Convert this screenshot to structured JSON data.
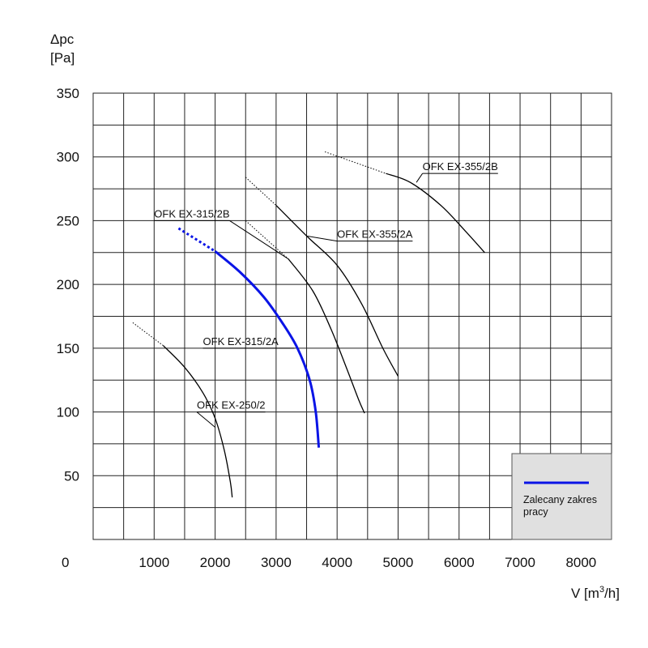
{
  "chart_data": {
    "type": "line",
    "ylabel_line1": "Δpc",
    "ylabel_line2": "[Pa]",
    "xlabel": "V [m³/h]",
    "xlabel_base": "V [m",
    "xlabel_sup": "3",
    "xlabel_tail": "/h]",
    "origin_label": "0",
    "xlim": [
      0,
      8500
    ],
    "ylim": [
      0,
      350
    ],
    "x_ticks": [
      1000,
      2000,
      3000,
      4000,
      5000,
      6000,
      7000,
      8000
    ],
    "y_ticks": [
      50,
      100,
      150,
      200,
      250,
      300,
      350
    ],
    "grid": true,
    "legend": {
      "placement": "bottom-right",
      "entry": "Zalecany zakres pracy",
      "entry_line1": "Zalecany zakres",
      "entry_line2": "pracy",
      "color": "#0a14e6"
    },
    "series": [
      {
        "name": "OFK EX-250/2",
        "color": "#000000",
        "highlight": false,
        "dotted": [
          [
            650,
            170
          ],
          [
            1150,
            152
          ]
        ],
        "solid": [
          [
            1150,
            152
          ],
          [
            1500,
            135
          ],
          [
            1800,
            115
          ],
          [
            2000,
            95
          ],
          [
            2150,
            70
          ],
          [
            2250,
            45
          ],
          [
            2280,
            33
          ]
        ]
      },
      {
        "name": "OFK EX-315/2A",
        "color": "#000000",
        "highlight": false,
        "dotted": [
          [
            2500,
            250
          ],
          [
            3200,
            220
          ]
        ],
        "solid": [
          [
            3200,
            220
          ],
          [
            3600,
            195
          ],
          [
            3900,
            165
          ],
          [
            4150,
            135
          ],
          [
            4350,
            110
          ],
          [
            4450,
            99
          ]
        ]
      },
      {
        "name": "OFK EX-315/2B",
        "color": "#0a14e6",
        "highlight": true,
        "dotted": [
          [
            1400,
            244
          ],
          [
            2000,
            226
          ]
        ],
        "solid": [
          [
            2000,
            226
          ],
          [
            2400,
            210
          ],
          [
            2800,
            190
          ],
          [
            3100,
            170
          ],
          [
            3350,
            150
          ],
          [
            3550,
            125
          ],
          [
            3650,
            100
          ],
          [
            3700,
            72
          ]
        ]
      },
      {
        "name": "OFK EX-355/2A",
        "color": "#000000",
        "highlight": false,
        "dotted": [
          [
            2500,
            284
          ],
          [
            3000,
            262
          ]
        ],
        "solid": [
          [
            3000,
            262
          ],
          [
            3500,
            238
          ],
          [
            4000,
            215
          ],
          [
            4400,
            185
          ],
          [
            4750,
            150
          ],
          [
            5000,
            128
          ]
        ]
      },
      {
        "name": "OFK EX-355/2B",
        "color": "#000000",
        "highlight": false,
        "dotted": [
          [
            3800,
            304
          ],
          [
            4800,
            287
          ]
        ],
        "solid": [
          [
            4800,
            287
          ],
          [
            5200,
            280
          ],
          [
            5700,
            262
          ],
          [
            6100,
            242
          ],
          [
            6420,
            225
          ]
        ]
      }
    ],
    "labels": [
      {
        "series": "OFK EX-250/2",
        "text": "OFK EX-250/2",
        "anchor": [
          1700,
          100
        ],
        "target": [
          2000,
          88
        ]
      },
      {
        "series": "OFK EX-315/2A",
        "text": "OFK EX-315/2A",
        "anchor": [
          1800,
          150
        ],
        "target": [
          3300,
          150
        ]
      },
      {
        "series": "OFK EX-315/2B",
        "text": "OFK EX-315/2B",
        "anchor": [
          1000,
          250
        ],
        "target": [
          3200,
          220
        ]
      },
      {
        "series": "OFK EX-355/2A",
        "text": "OFK EX-355/2A",
        "anchor": [
          4000,
          234
        ],
        "target": [
          3500,
          238
        ]
      },
      {
        "series": "OFK EX-355/2B",
        "text": "OFK EX-355/2B",
        "anchor": [
          5400,
          287
        ],
        "target": [
          5300,
          280
        ]
      }
    ]
  }
}
